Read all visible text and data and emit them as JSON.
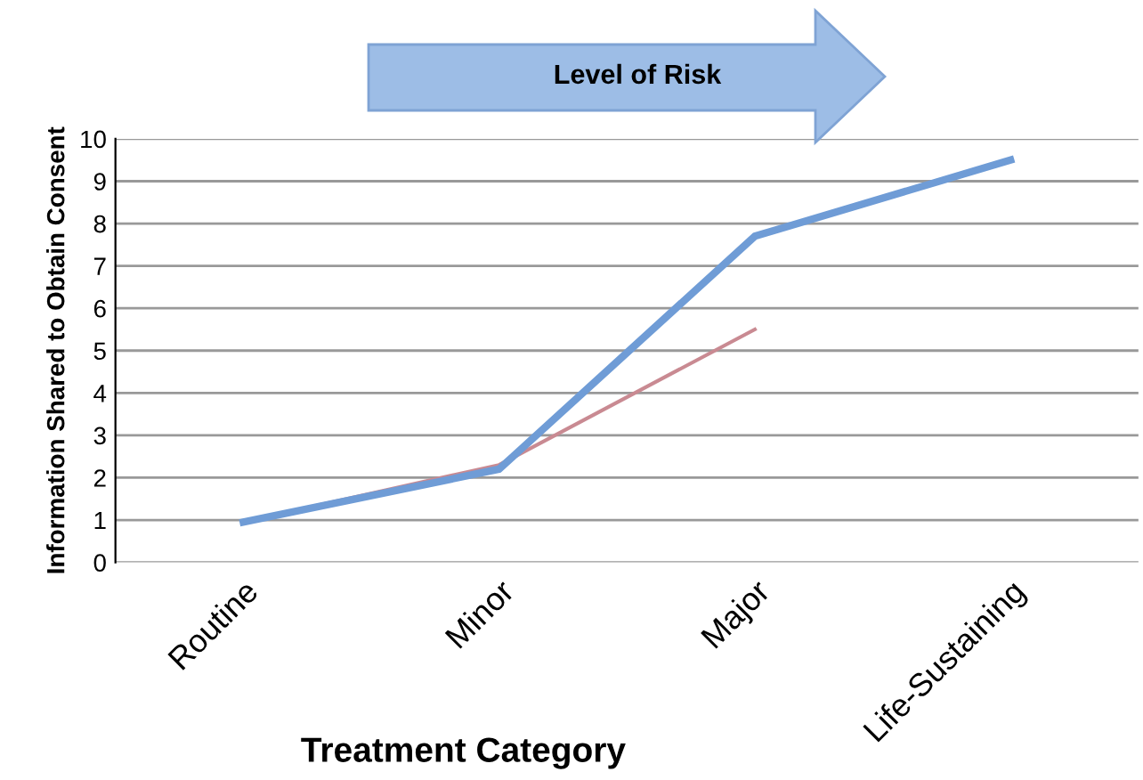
{
  "chart_data": {
    "type": "line",
    "xlabel": "Treatment Category",
    "ylabel": "Information Shared to Obtain Consent",
    "categories": [
      "Routine",
      "Minor",
      "Major",
      "Life-Sustaining"
    ],
    "ylim": [
      0,
      10
    ],
    "yticks": [
      0,
      1,
      2,
      3,
      4,
      5,
      6,
      7,
      8,
      9,
      10
    ],
    "grid": "y",
    "legend": false,
    "series": [
      {
        "color": "#6f9cd6",
        "values": [
          0.95,
          2.2,
          7.7,
          9.5
        ]
      },
      {
        "type": "line",
        "color": "#c98a92",
        "values": [
          0.95,
          2.3,
          5.5,
          null
        ]
      }
    ],
    "annotations": [
      "Level of Risk"
    ]
  }
}
